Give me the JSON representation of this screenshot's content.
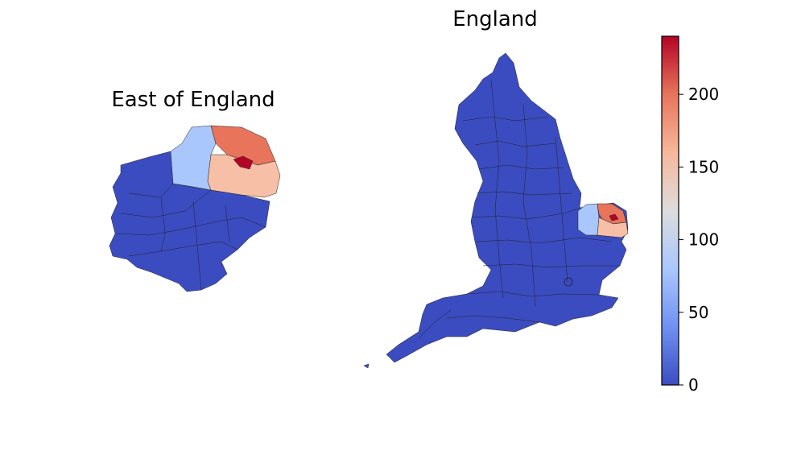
{
  "left_map": {
    "title": "East of England"
  },
  "right_map": {
    "title": "England"
  },
  "colorbar": {
    "min": 0,
    "max": 240,
    "ticks": [
      "0",
      "50",
      "100",
      "150",
      "200"
    ],
    "tick_values": [
      0,
      50,
      100,
      150,
      200
    ],
    "colormap": "coolwarm",
    "stops": [
      "#3b4cc0",
      "#6f92f3",
      "#aac7fd",
      "#dddcdc",
      "#f7b89c",
      "#e7745b",
      "#b40426"
    ]
  },
  "chart_data": {
    "type": "choropleth",
    "colors": {
      "low": "#3b4cc0",
      "light_blue": "#aac7fd",
      "peach": "#f6bfa6",
      "orange_red": "#e7745b",
      "dark_red": "#b40426"
    }
  }
}
